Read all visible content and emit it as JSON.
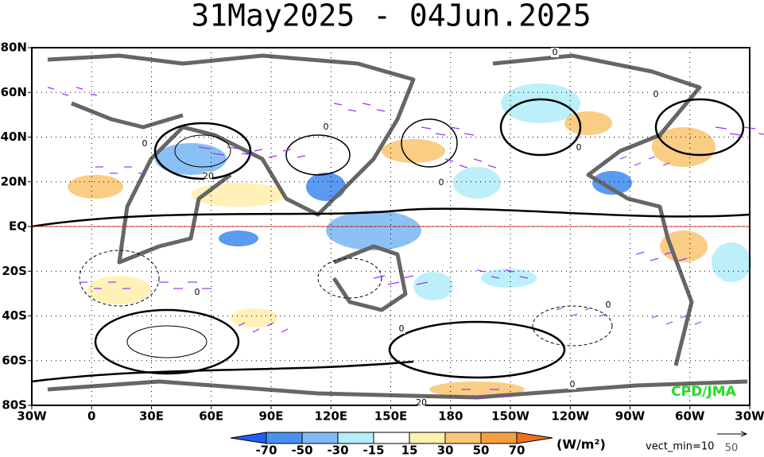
{
  "title": "31May2025 - 04Jun.2025",
  "map": {
    "lat_labels": [
      "80N",
      "60N",
      "40N",
      "20N",
      "EQ",
      "20S",
      "40S",
      "60S",
      "80S"
    ],
    "lon_labels": [
      "30W",
      "0",
      "30E",
      "60E",
      "90E",
      "120E",
      "150E",
      "180",
      "150W",
      "120W",
      "90W",
      "60W",
      "30W"
    ],
    "contour_labels": [
      "0",
      "0",
      "0",
      "20",
      "0",
      "0",
      "0",
      "0",
      "0",
      "0",
      "0",
      "20"
    ],
    "credit": "CPD/JMA"
  },
  "legend": {
    "labels": [
      "-70",
      "-50",
      "-30",
      "-15",
      "15",
      "30",
      "50",
      "70"
    ],
    "unit": "(W/m²)",
    "vect_min": "vect_min=10",
    "ref_vector": "50"
  }
}
